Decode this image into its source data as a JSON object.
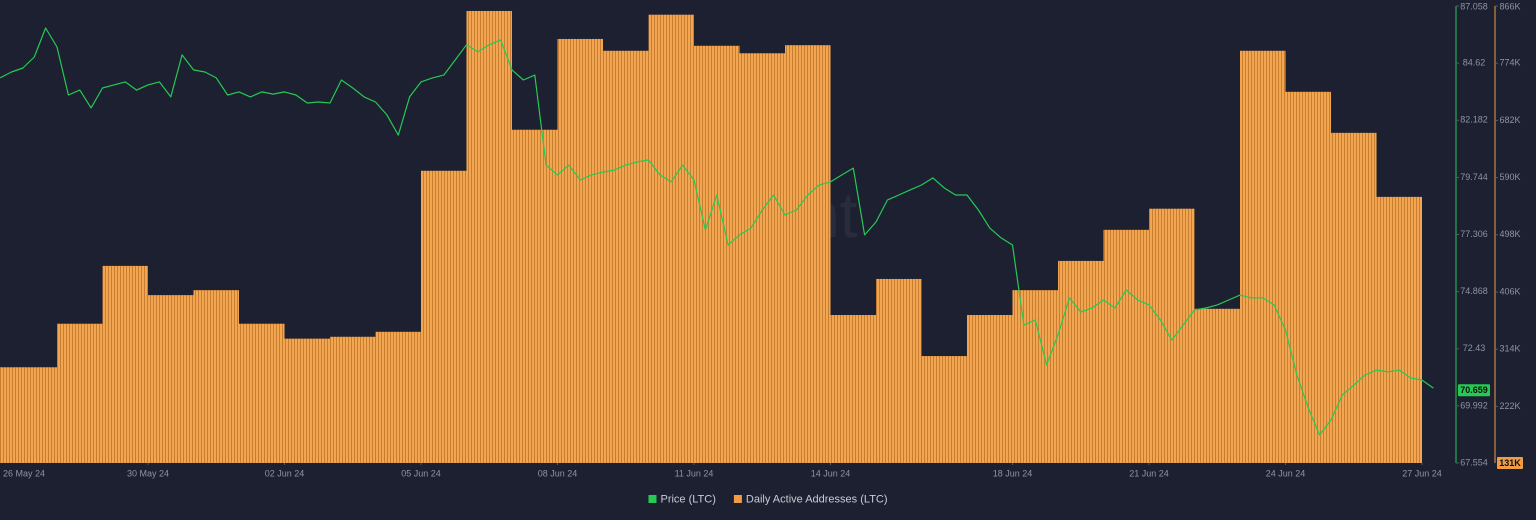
{
  "chart_data": {
    "type": "bar-line",
    "watermark": "santiment",
    "xlim": [
      "2024-05-26T17:56",
      "2024-06-27T15:49"
    ],
    "xticks": [
      {
        "value": "2024-05-26",
        "label": "26 May 24"
      },
      {
        "value": "2024-05-30",
        "label": "30 May 24"
      },
      {
        "value": "2024-06-02",
        "label": "02 Jun 24"
      },
      {
        "value": "2024-06-05",
        "label": "05 Jun 24"
      },
      {
        "value": "2024-06-08",
        "label": "08 Jun 24"
      },
      {
        "value": "2024-06-11",
        "label": "11 Jun 24"
      },
      {
        "value": "2024-06-14",
        "label": "14 Jun 24"
      },
      {
        "value": "2024-06-18",
        "label": "18 Jun 24"
      },
      {
        "value": "2024-06-21",
        "label": "21 Jun 24"
      },
      {
        "value": "2024-06-24",
        "label": "24 Jun 24"
      },
      {
        "value": "2024-06-27",
        "label": "27 Jun 24"
      }
    ],
    "ylim": [
      67.554,
      87.058
    ],
    "yticks": [
      67.554,
      69.992,
      72.43,
      74.868,
      77.306,
      79.744,
      82.182,
      84.62,
      87.058
    ],
    "y2lim": [
      131000,
      866000
    ],
    "y2ticks": [
      {
        "value": 222000,
        "label": "222K"
      },
      {
        "value": 314000,
        "label": "314K"
      },
      {
        "value": 406000,
        "label": "406K"
      },
      {
        "value": 498000,
        "label": "498K"
      },
      {
        "value": 590000,
        "label": "590K"
      },
      {
        "value": 682000,
        "label": "682K"
      },
      {
        "value": 774000,
        "label": "774K"
      },
      {
        "value": 866000,
        "label": "866K"
      }
    ],
    "last_price": 70.659,
    "last_addresses": {
      "value": 131000,
      "label": "131K"
    },
    "series": [
      {
        "name": "Daily Active Addresses (LTC)",
        "type": "bar",
        "axis": "y2",
        "color": "#ef9c45",
        "x": [
          "2024-05-26",
          "2024-05-27",
          "2024-05-28",
          "2024-05-29",
          "2024-05-30",
          "2024-05-31",
          "2024-06-01",
          "2024-06-02",
          "2024-06-03",
          "2024-06-04",
          "2024-06-05",
          "2024-06-06",
          "2024-06-07",
          "2024-06-08",
          "2024-06-09",
          "2024-06-10",
          "2024-06-11",
          "2024-06-12",
          "2024-06-13",
          "2024-06-14",
          "2024-06-15",
          "2024-06-16",
          "2024-06-17",
          "2024-06-18",
          "2024-06-19",
          "2024-06-20",
          "2024-06-21",
          "2024-06-22",
          "2024-06-23",
          "2024-06-24",
          "2024-06-25",
          "2024-06-26"
        ],
        "values": [
          285000,
          285000,
          355000,
          448000,
          401000,
          409000,
          355000,
          331000,
          334000,
          342000,
          601000,
          858000,
          667000,
          813000,
          794000,
          852000,
          802000,
          790000,
          803000,
          369000,
          427000,
          303000,
          369000,
          409000,
          456000,
          506000,
          540000,
          379000,
          794000,
          728000,
          662000,
          559000
        ]
      },
      {
        "name": "Price (LTC)",
        "type": "line",
        "color": "#26c953",
        "x": [
          "2024-05-26T18:00",
          "2024-05-27T00:00",
          "2024-05-27T06:00",
          "2024-05-27T12:00",
          "2024-05-27T18:00",
          "2024-05-28T00:00",
          "2024-05-28T06:00",
          "2024-05-28T12:00",
          "2024-05-28T18:00",
          "2024-05-29T00:00",
          "2024-05-29T06:00",
          "2024-05-29T12:00",
          "2024-05-29T18:00",
          "2024-05-30T00:00",
          "2024-05-30T06:00",
          "2024-05-30T12:00",
          "2024-05-30T18:00",
          "2024-05-31T00:00",
          "2024-05-31T06:00",
          "2024-05-31T12:00",
          "2024-05-31T18:00",
          "2024-06-01T00:00",
          "2024-06-01T06:00",
          "2024-06-01T12:00",
          "2024-06-01T18:00",
          "2024-06-02T00:00",
          "2024-06-02T06:00",
          "2024-06-02T12:00",
          "2024-06-02T18:00",
          "2024-06-03T00:00",
          "2024-06-03T06:00",
          "2024-06-03T12:00",
          "2024-06-03T18:00",
          "2024-06-04T00:00",
          "2024-06-04T06:00",
          "2024-06-04T12:00",
          "2024-06-04T18:00",
          "2024-06-05T00:00",
          "2024-06-05T06:00",
          "2024-06-05T12:00",
          "2024-06-05T18:00",
          "2024-06-06T00:00",
          "2024-06-06T06:00",
          "2024-06-06T12:00",
          "2024-06-06T18:00",
          "2024-06-07T00:00",
          "2024-06-07T06:00",
          "2024-06-07T12:00",
          "2024-06-07T18:00",
          "2024-06-08T00:00",
          "2024-06-08T06:00",
          "2024-06-08T12:00",
          "2024-06-08T18:00",
          "2024-06-09T00:00",
          "2024-06-09T06:00",
          "2024-06-09T12:00",
          "2024-06-09T18:00",
          "2024-06-10T00:00",
          "2024-06-10T06:00",
          "2024-06-10T12:00",
          "2024-06-10T18:00",
          "2024-06-11T00:00",
          "2024-06-11T06:00",
          "2024-06-11T12:00",
          "2024-06-11T18:00",
          "2024-06-12T00:00",
          "2024-06-12T06:00",
          "2024-06-12T12:00",
          "2024-06-12T18:00",
          "2024-06-13T00:00",
          "2024-06-13T06:00",
          "2024-06-13T12:00",
          "2024-06-13T18:00",
          "2024-06-14T00:00",
          "2024-06-14T06:00",
          "2024-06-14T12:00",
          "2024-06-14T18:00",
          "2024-06-15T00:00",
          "2024-06-15T06:00",
          "2024-06-15T12:00",
          "2024-06-15T18:00",
          "2024-06-16T00:00",
          "2024-06-16T06:00",
          "2024-06-16T12:00",
          "2024-06-16T18:00",
          "2024-06-17T00:00",
          "2024-06-17T06:00",
          "2024-06-17T12:00",
          "2024-06-17T18:00",
          "2024-06-18T00:00",
          "2024-06-18T06:00",
          "2024-06-18T12:00",
          "2024-06-18T18:00",
          "2024-06-19T00:00",
          "2024-06-19T06:00",
          "2024-06-19T12:00",
          "2024-06-19T18:00",
          "2024-06-20T00:00",
          "2024-06-20T06:00",
          "2024-06-20T12:00",
          "2024-06-20T18:00",
          "2024-06-21T00:00",
          "2024-06-21T06:00",
          "2024-06-21T12:00",
          "2024-06-21T18:00",
          "2024-06-22T00:00",
          "2024-06-22T06:00",
          "2024-06-22T12:00",
          "2024-06-22T18:00",
          "2024-06-23T00:00",
          "2024-06-23T06:00",
          "2024-06-23T12:00",
          "2024-06-23T18:00",
          "2024-06-24T00:00",
          "2024-06-24T06:00",
          "2024-06-24T12:00",
          "2024-06-24T18:00",
          "2024-06-25T00:00",
          "2024-06-25T06:00",
          "2024-06-25T12:00",
          "2024-06-25T18:00",
          "2024-06-26T00:00",
          "2024-06-26T06:00",
          "2024-06-26T12:00",
          "2024-06-26T18:00",
          "2024-06-27T00:00",
          "2024-06-27T06:00"
        ],
        "values": [
          83.99,
          84.24,
          84.41,
          84.88,
          86.12,
          85.31,
          83.26,
          83.47,
          82.71,
          83.56,
          83.69,
          83.82,
          83.47,
          83.69,
          83.82,
          83.18,
          84.97,
          84.33,
          84.24,
          83.99,
          83.26,
          83.39,
          83.18,
          83.39,
          83.3,
          83.39,
          83.26,
          82.92,
          82.96,
          82.92,
          83.9,
          83.56,
          83.18,
          82.96,
          82.41,
          81.55,
          83.18,
          83.82,
          83.99,
          84.11,
          84.75,
          85.4,
          85.1,
          85.4,
          85.61,
          84.33,
          83.9,
          84.11,
          80.27,
          79.85,
          80.27,
          79.63,
          79.85,
          79.97,
          80.06,
          80.27,
          80.4,
          80.49,
          79.85,
          79.55,
          80.27,
          79.63,
          77.5,
          78.99,
          76.86,
          77.29,
          77.58,
          78.35,
          78.99,
          78.14,
          78.35,
          78.99,
          79.42,
          79.55,
          79.85,
          80.14,
          77.29,
          77.84,
          78.78,
          78.99,
          79.21,
          79.42,
          79.72,
          79.29,
          78.99,
          78.99,
          78.35,
          77.58,
          77.16,
          76.86,
          73.44,
          73.66,
          71.74,
          73.02,
          74.6,
          74.0,
          74.17,
          74.51,
          74.17,
          74.94,
          74.51,
          74.3,
          73.66,
          72.8,
          73.44,
          74.09,
          74.17,
          74.3,
          74.51,
          74.72,
          74.6,
          74.6,
          74.3,
          73.23,
          71.31,
          69.9,
          68.75,
          69.39,
          70.46,
          70.88,
          71.31,
          71.52,
          71.44,
          71.52,
          71.18,
          71.09,
          70.75
        ]
      }
    ]
  }
}
